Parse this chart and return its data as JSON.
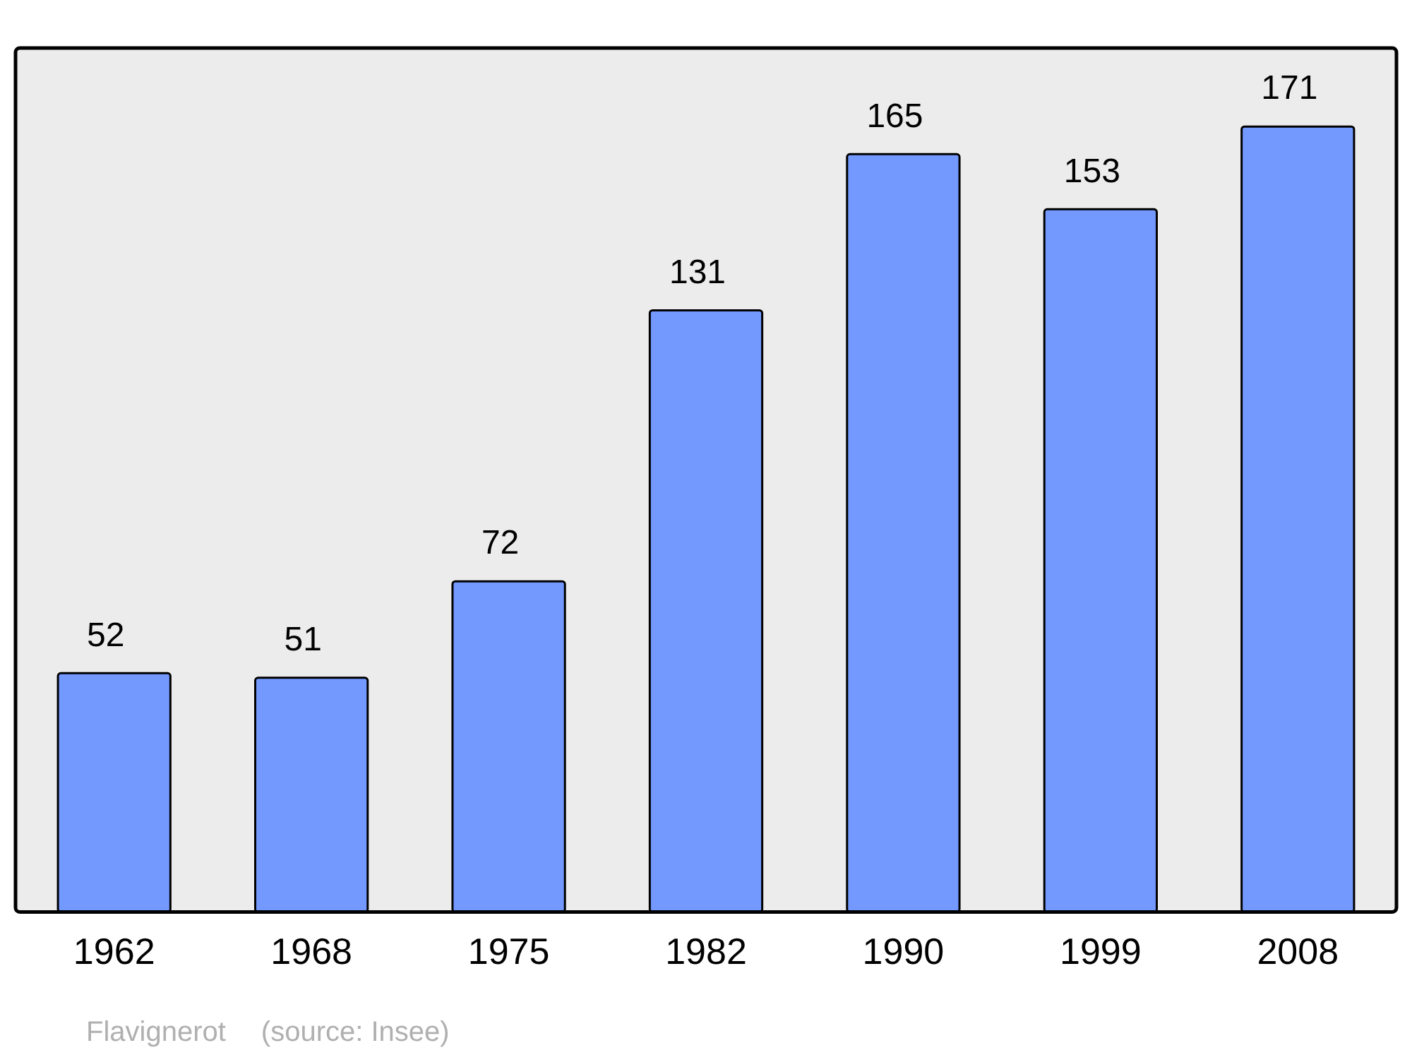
{
  "chart_data": {
    "type": "bar",
    "categories": [
      "1962",
      "1968",
      "1975",
      "1982",
      "1990",
      "1999",
      "2008"
    ],
    "values": [
      52,
      51,
      72,
      131,
      165,
      153,
      171
    ],
    "color": "#7399ff",
    "data_labels": true,
    "grid": false,
    "legend": false,
    "annotations": [
      "Flavignerot",
      "(source: Insee)"
    ]
  }
}
